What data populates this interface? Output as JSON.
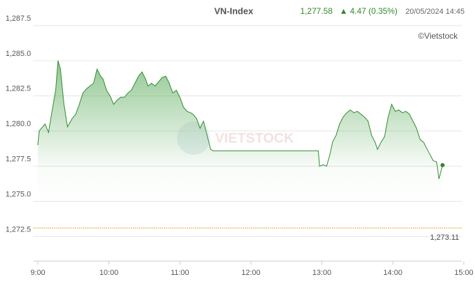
{
  "chart_data": {
    "type": "area",
    "title": "VN-Index",
    "last": "1,277.58",
    "change": "▲ 4.47 (0.35%)",
    "timestamp": "20/05/2024 14:45",
    "credit": "©Vietstock",
    "watermark": "VIETSTOCK",
    "color": "#2e8b2e",
    "change_color": "#2e8b2e",
    "x": [
      540,
      541,
      546,
      549,
      552,
      555,
      557,
      559,
      562,
      565,
      569,
      572,
      575,
      578,
      581,
      584,
      587,
      590,
      593,
      595,
      598,
      601,
      604,
      607,
      610,
      613,
      616,
      619,
      622,
      625,
      628,
      631,
      633,
      636,
      639,
      642,
      645,
      648,
      651,
      654,
      657,
      660,
      663,
      666,
      669,
      671,
      674,
      677,
      680,
      683,
      686,
      688,
      690,
      777,
      778,
      781,
      784,
      787,
      789,
      792,
      795,
      798,
      801,
      804,
      807,
      810,
      813,
      816,
      819,
      822,
      825,
      827,
      830,
      833,
      836,
      839,
      842,
      845,
      848,
      851,
      854,
      857,
      860,
      863,
      866,
      869,
      871,
      874,
      877,
      879,
      882
    ],
    "values": [
      1279.0,
      1280.0,
      1280.5,
      1279.9,
      1281.45,
      1282.9,
      1285.0,
      1284.4,
      1281.9,
      1280.3,
      1280.9,
      1281.2,
      1281.9,
      1282.7,
      1283.0,
      1283.2,
      1283.4,
      1284.4,
      1283.9,
      1283.7,
      1282.9,
      1282.5,
      1281.9,
      1282.2,
      1282.4,
      1282.4,
      1282.7,
      1282.9,
      1283.4,
      1283.9,
      1284.2,
      1283.7,
      1283.2,
      1283.4,
      1283.2,
      1283.5,
      1283.8,
      1283.9,
      1283.4,
      1282.7,
      1282.9,
      1282.4,
      1281.7,
      1281.4,
      1281.3,
      1281.2,
      1280.9,
      1280.2,
      1280.7,
      1279.7,
      1278.7,
      1278.6,
      1278.6,
      1278.6,
      1277.5,
      1277.6,
      1277.5,
      1278.4,
      1279.2,
      1279.7,
      1280.5,
      1281.0,
      1281.3,
      1281.5,
      1281.3,
      1281.4,
      1281.2,
      1281.0,
      1280.7,
      1279.7,
      1279.2,
      1278.7,
      1279.2,
      1279.6,
      1281.0,
      1281.9,
      1281.4,
      1281.5,
      1281.3,
      1281.4,
      1281.2,
      1280.7,
      1280.2,
      1279.4,
      1279.2,
      1278.7,
      1278.4,
      1277.9,
      1277.8,
      1276.6,
      1277.58
    ],
    "xlim": [
      536,
      903
    ],
    "ylim": [
      1270.75,
      1287.5
    ],
    "xticks": [
      {
        "value": 540,
        "label": "9:00"
      },
      {
        "value": 600,
        "label": "10:00"
      },
      {
        "value": 660,
        "label": "11:00"
      },
      {
        "value": 720,
        "label": "12:00"
      },
      {
        "value": 780,
        "label": "13:00"
      },
      {
        "value": 840,
        "label": "14:00"
      },
      {
        "value": 900,
        "label": "15:00"
      }
    ],
    "yticks": [
      {
        "value": 1272.5,
        "label": "1,272.5"
      },
      {
        "value": 1275,
        "label": "1,275.0"
      },
      {
        "value": 1277.5,
        "label": "1,277.5"
      },
      {
        "value": 1280,
        "label": "1,280.0"
      },
      {
        "value": 1282.5,
        "label": "1,282.5"
      },
      {
        "value": 1285,
        "label": "1,285.0"
      },
      {
        "value": 1287.5,
        "label": "1,287.5"
      }
    ],
    "grid": true,
    "reference": {
      "value": 1273.11,
      "label": "1,273.11",
      "color": "#f0a020"
    }
  }
}
